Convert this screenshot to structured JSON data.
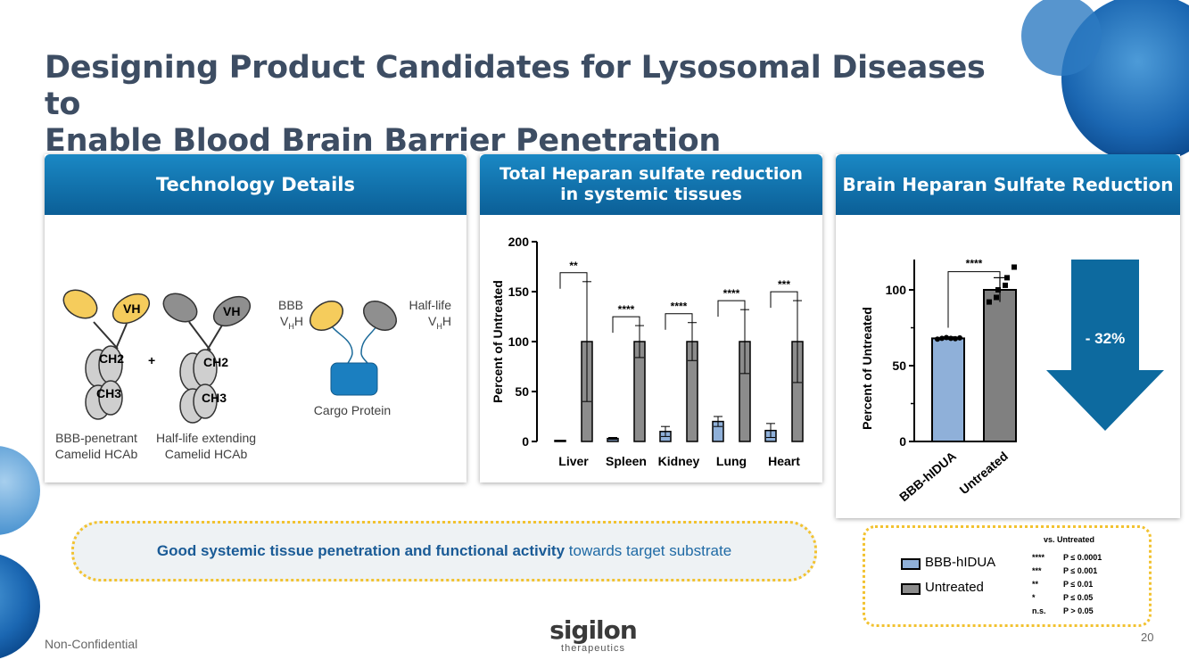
{
  "slide": {
    "title_line1": "Designing Product Candidates for Lysosomal Diseases to",
    "title_line2": "Enable Blood Brain Barrier Penetration",
    "footer_left": "Non-Confidential",
    "page_number": "20",
    "logo_main": "sigilon",
    "logo_sub": "therapeutics"
  },
  "panel_tech": {
    "header": "Technology Details",
    "vh1": "VH",
    "ch2_1": "CH2",
    "ch3_1": "CH3",
    "plus": "+",
    "vh2": "VH",
    "ch2_2": "CH2",
    "ch3_2": "CH3",
    "bbb_label_1": "BBB",
    "bbb_label_2": "V",
    "bbb_label_sub": "H",
    "bbb_label_3": "H",
    "halflife_label_1": "Half-life",
    "halflife_label_2": "V",
    "halflife_label_sub": "H",
    "halflife_label_3": "H",
    "cargo_label": "Cargo Protein",
    "caption1_line1": "BBB-penetrant",
    "caption1_line2": "Camelid HCAb",
    "caption2_line1": "Half-life extending",
    "caption2_line2": "Camelid HCAb"
  },
  "panel_tissue": {
    "header_line1": "Total Heparan sulfate reduction",
    "header_line2": "in systemic tissues"
  },
  "panel_brain": {
    "header": "Brain Heparan Sulfate Reduction",
    "arrow_text": "- 32%"
  },
  "chart_data": [
    {
      "type": "bar",
      "title": "Total Heparan sulfate reduction in systemic tissues",
      "xlabel": "",
      "ylabel": "Percent of Untreated",
      "ylim": [
        0,
        200
      ],
      "yticks": [
        0,
        50,
        100,
        150,
        200
      ],
      "categories": [
        "Liver",
        "Spleen",
        "Kidney",
        "Lung",
        "Heart"
      ],
      "series": [
        {
          "name": "BBB-hIDUA",
          "values": [
            1,
            3,
            10,
            20,
            11
          ],
          "errors": [
            0,
            1,
            5,
            5,
            7
          ],
          "color": "#8fb0d9"
        },
        {
          "name": "Untreated",
          "values": [
            100,
            100,
            100,
            100,
            100
          ],
          "errors": [
            60,
            16,
            19,
            32,
            41
          ],
          "color": "#8c8c8c"
        }
      ],
      "significance": [
        "**",
        "****",
        "****",
        "****",
        "***"
      ]
    },
    {
      "type": "bar",
      "title": "Brain Heparan Sulfate Reduction",
      "xlabel": "",
      "ylabel": "Percent of Untreated",
      "ylim": [
        0,
        120
      ],
      "yticks": [
        0,
        50,
        100
      ],
      "categories": [
        "BBB-hIDUA",
        "Untreated"
      ],
      "values": [
        68,
        100
      ],
      "errors": [
        1,
        8
      ],
      "points": [
        [
          67.5,
          68,
          68.5,
          68,
          67.8,
          68.3
        ],
        [
          92,
          95,
          100,
          103,
          108,
          115
        ]
      ],
      "colors": [
        "#8fb0d9",
        "#808080"
      ],
      "significance": "****"
    }
  ],
  "callout": {
    "bold_text": "Good systemic tissue penetration and functional activity",
    "normal_text": " towards target substrate"
  },
  "legend": {
    "item1": "BBB-hIDUA",
    "item2": "Untreated",
    "stats_title": "vs. Untreated",
    "stats": [
      {
        "stars": "****",
        "p": "P ≤ 0.0001"
      },
      {
        "stars": "***",
        "p": "P ≤ 0.001"
      },
      {
        "stars": "**",
        "p": "P ≤ 0.01"
      },
      {
        "stars": "*",
        "p": "P ≤ 0.05"
      },
      {
        "stars": "n.s.",
        "p": "P > 0.05"
      }
    ]
  },
  "colors": {
    "title": "#3d4d63",
    "header_top": "#1a88c4",
    "header_bottom": "#0b5f97",
    "yellow": "#f5cc5c",
    "cargo": "#1b7fc0",
    "arrow": "#0d6a9f"
  }
}
